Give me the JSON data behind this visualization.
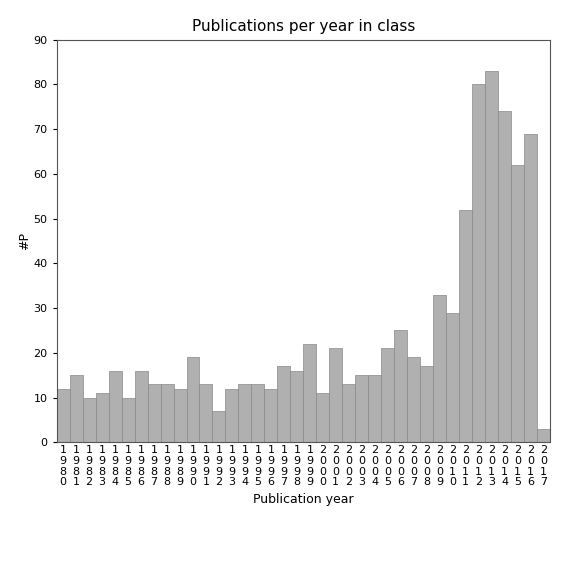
{
  "title": "Publications per year in class",
  "xlabel": "Publication year",
  "ylabel": "#P",
  "years": [
    1980,
    1981,
    1982,
    1983,
    1984,
    1985,
    1986,
    1987,
    1988,
    1989,
    1990,
    1991,
    1992,
    1993,
    1994,
    1995,
    1996,
    1997,
    1998,
    1999,
    2000,
    2001,
    2002,
    2003,
    2004,
    2005,
    2006,
    2007,
    2008,
    2009,
    2010,
    2011,
    2012,
    2013,
    2014,
    2015,
    2016,
    2017
  ],
  "values": [
    12,
    15,
    10,
    11,
    16,
    10,
    16,
    13,
    13,
    12,
    19,
    13,
    7,
    12,
    13,
    13,
    12,
    17,
    16,
    22,
    11,
    21,
    13,
    15,
    15,
    21,
    25,
    19,
    17,
    33,
    29,
    52,
    80,
    83,
    74,
    62,
    69,
    3
  ],
  "bar_color": "#b0b0b0",
  "bar_edge_color": "#888888",
  "ylim": [
    0,
    90
  ],
  "yticks": [
    0,
    10,
    20,
    30,
    40,
    50,
    60,
    70,
    80,
    90
  ],
  "bg_color": "#ffffff",
  "title_fontsize": 11,
  "label_fontsize": 9,
  "tick_fontsize": 8
}
